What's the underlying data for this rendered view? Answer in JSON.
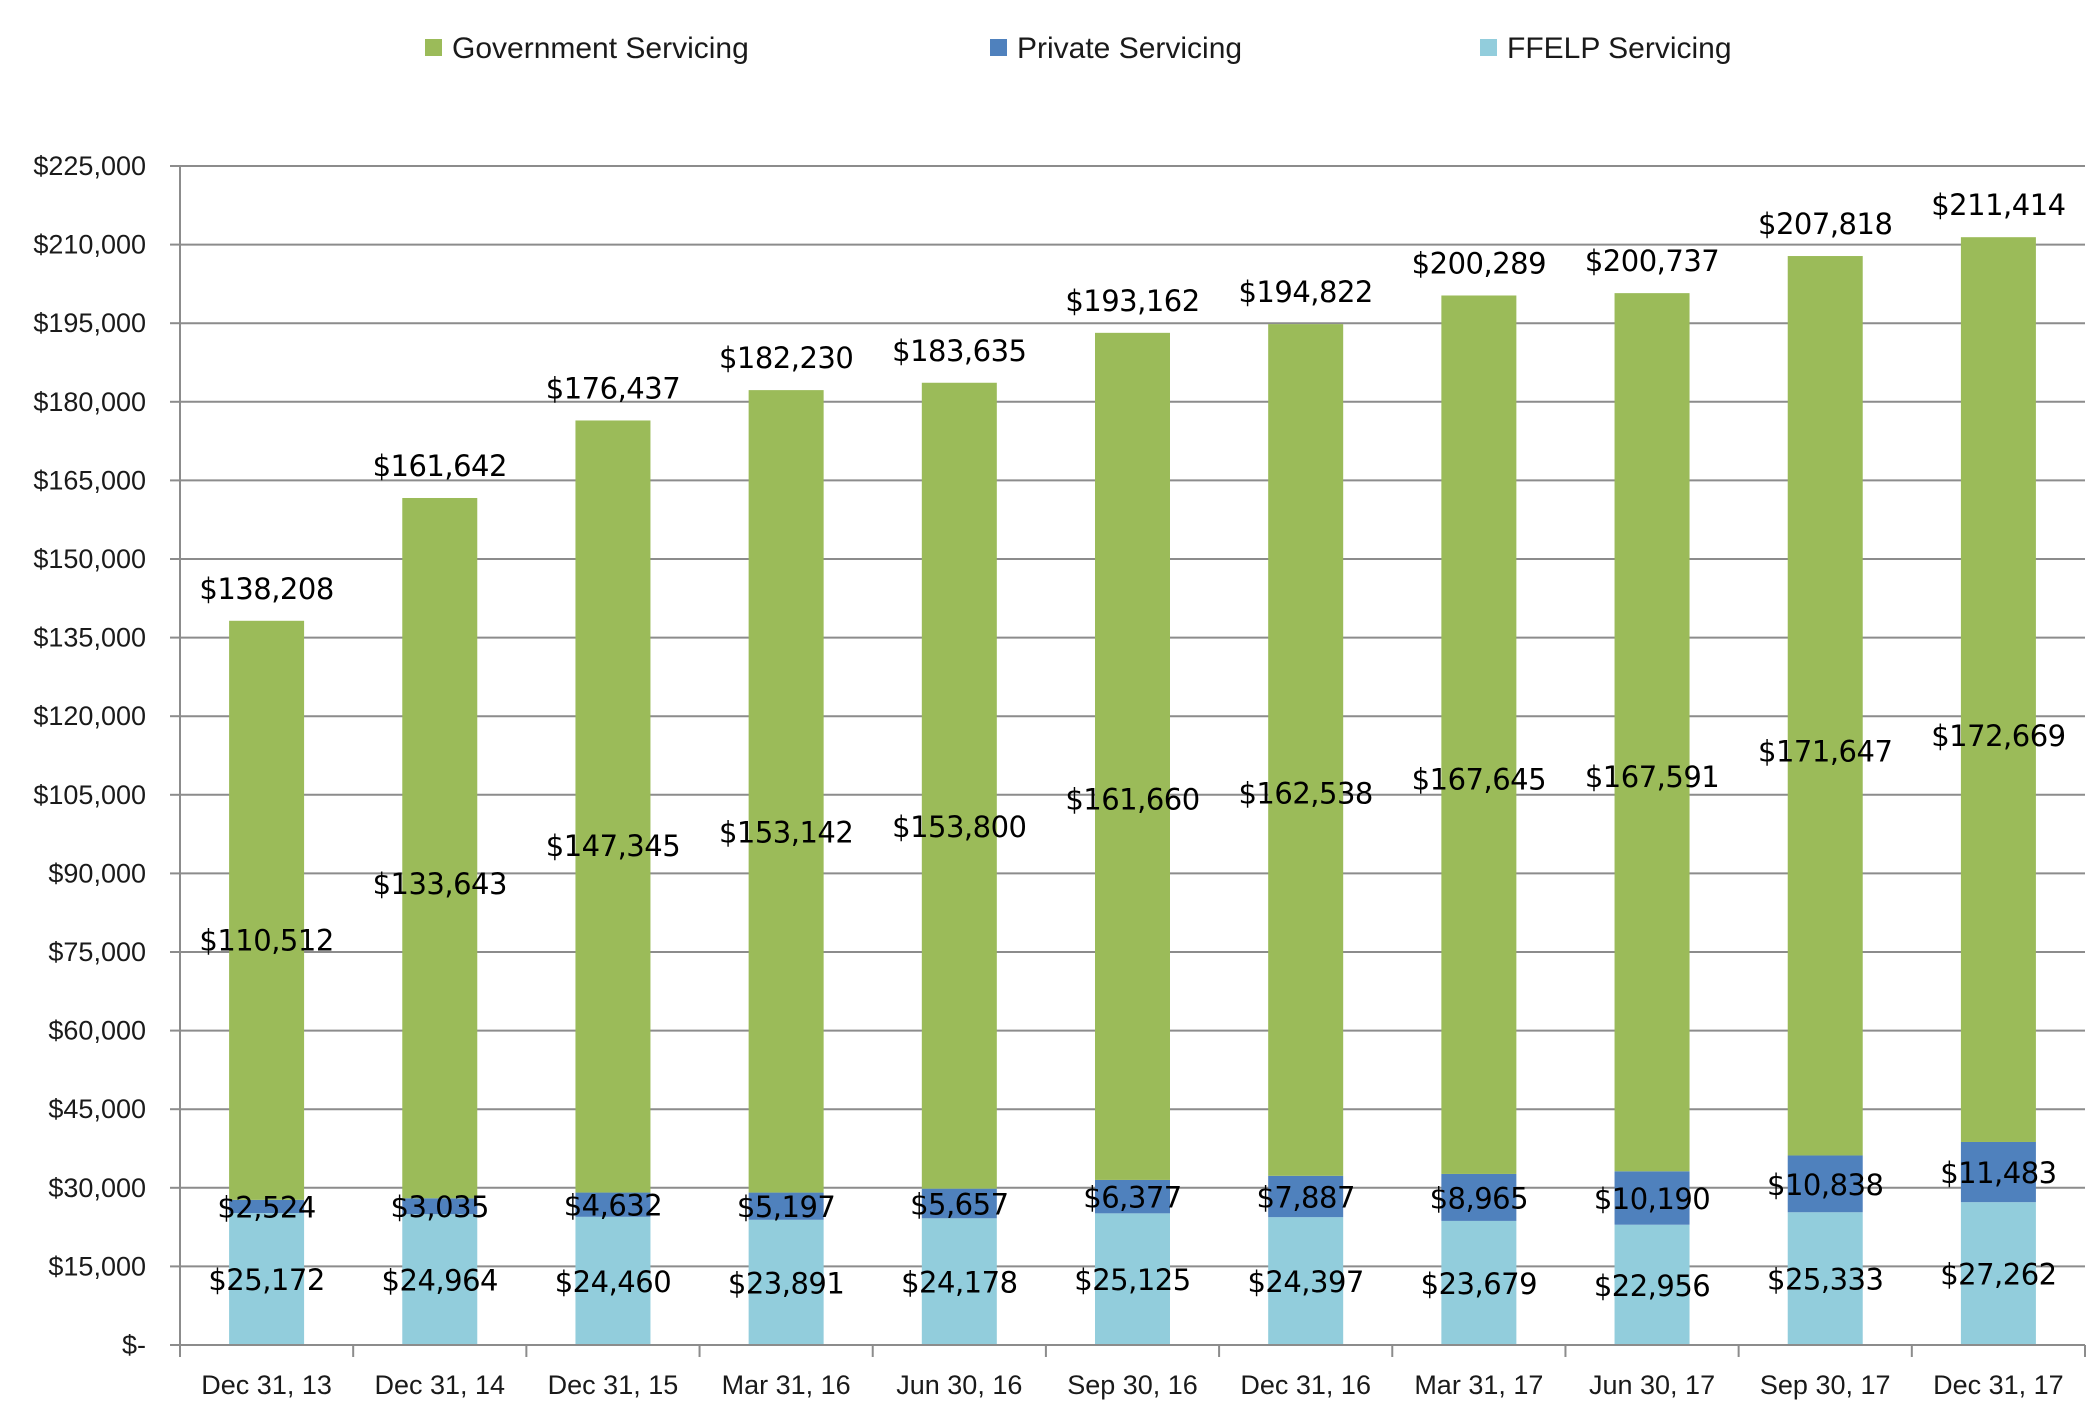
{
  "chart_data": {
    "type": "bar",
    "stacked": true,
    "categories": [
      "Dec 31, 13",
      "Dec 31, 14",
      "Dec 31, 15",
      "Mar 31, 16",
      "Jun 30, 16",
      "Sep 30, 16",
      "Dec 31, 16",
      "Mar 31, 17",
      "Jun 30, 17",
      "Sep 30, 17",
      "Dec 31, 17"
    ],
    "series": [
      {
        "name": "FFELP Servicing",
        "color": "#92cddc",
        "values": [
          25172,
          24964,
          24460,
          23891,
          24178,
          25125,
          24397,
          23679,
          22956,
          25333,
          27262
        ],
        "labels": [
          "$25,172",
          "$24,964",
          "$24,460",
          "$23,891",
          "$24,178",
          "$25,125",
          "$24,397",
          "$23,679",
          "$22,956",
          "$25,333",
          "$27,262"
        ]
      },
      {
        "name": "Private Servicing",
        "color": "#4f81bd",
        "values": [
          2524,
          3035,
          4632,
          5197,
          5657,
          6377,
          7887,
          8965,
          10190,
          10838,
          11483
        ],
        "labels": [
          "$2,524",
          "$3,035",
          "$4,632",
          "$5,197",
          "$5,657",
          "$6,377",
          "$7,887",
          "$8,965",
          "$10,190",
          "$10,838",
          "$11,483"
        ]
      },
      {
        "name": "Government Servicing",
        "color": "#9bbb59",
        "values": [
          110512,
          133643,
          147345,
          153142,
          153800,
          161660,
          162538,
          167645,
          167591,
          171647,
          172669
        ],
        "labels": [
          "$110,512",
          "$133,643",
          "$147,345",
          "$153,142",
          "$153,800",
          "$161,660",
          "$162,538",
          "$167,645",
          "$167,591",
          "$171,647",
          "$172,669"
        ]
      }
    ],
    "totals": [
      138208,
      161642,
      176437,
      182230,
      183635,
      193162,
      194822,
      200289,
      200737,
      207818,
      211414
    ],
    "total_labels": [
      "$138,208",
      "$161,642",
      "$176,437",
      "$182,230",
      "$183,635",
      "$193,162",
      "$194,822",
      "$200,289",
      "$200,737",
      "$207,818",
      "$211,414"
    ],
    "legend": [
      "Government Servicing",
      "Private Servicing",
      "FFELP Servicing"
    ],
    "legend_position": "top",
    "yticks": [
      0,
      15000,
      30000,
      45000,
      60000,
      75000,
      90000,
      105000,
      120000,
      135000,
      150000,
      165000,
      180000,
      195000,
      210000,
      225000
    ],
    "ytick_labels": [
      "$-",
      "$15,000",
      "$30,000",
      "$45,000",
      "$60,000",
      "$75,000",
      "$90,000",
      "$105,000",
      "$120,000",
      "$135,000",
      "$150,000",
      "$165,000",
      "$180,000",
      "$195,000",
      "$210,000",
      "$225,000"
    ],
    "ylim": [
      0,
      225000
    ],
    "grid": true,
    "title": "",
    "xlabel": "",
    "ylabel": ""
  }
}
